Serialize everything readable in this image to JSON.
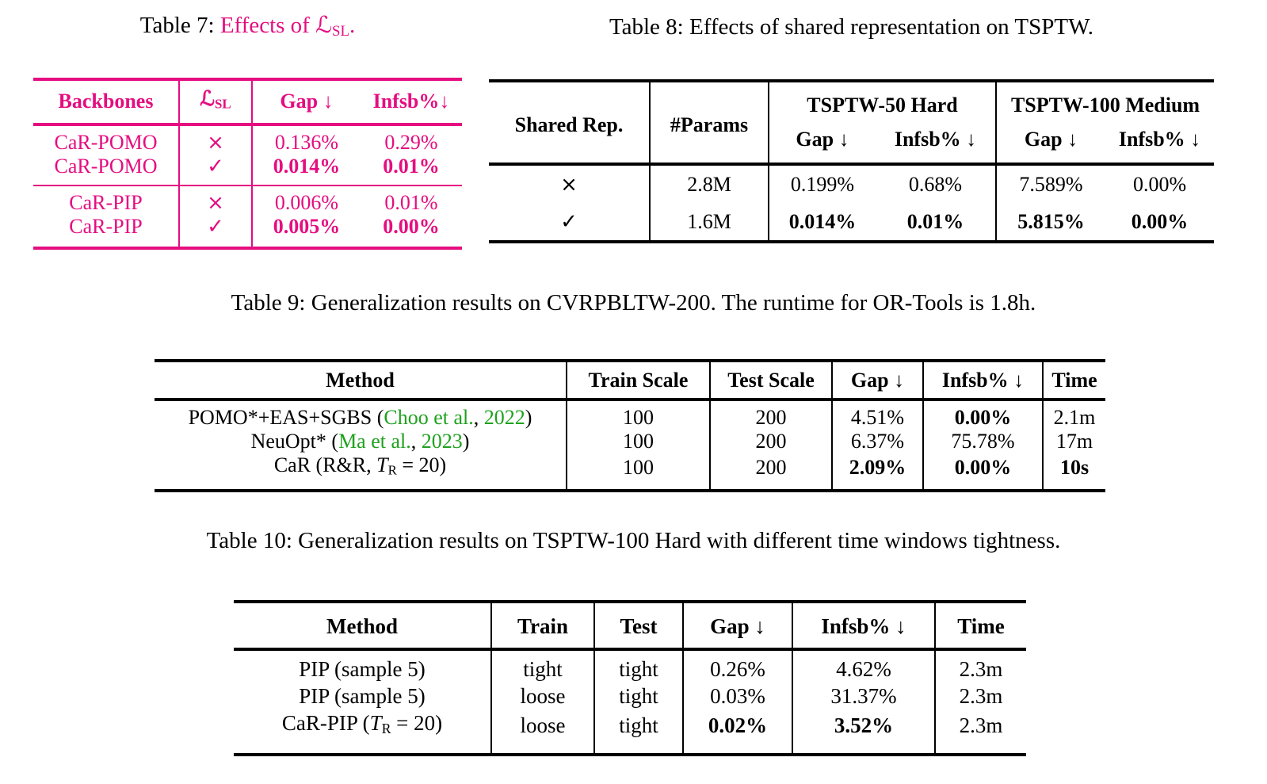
{
  "colors": {
    "magenta": "#e50d80",
    "green": "#1ea11e",
    "black": "#000000"
  },
  "captions": {
    "t7": [
      {
        "t": "Table 7: "
      },
      {
        "t": "Effects of ",
        "c": "magenta"
      },
      {
        "t": "ℒ",
        "c": "magenta",
        "n": "script-L"
      },
      {
        "t": "SL",
        "c": "magenta",
        "sub": true
      },
      {
        "t": ".",
        "c": "magenta"
      }
    ],
    "t8": "Table 8: Effects of shared representation on TSPTW.",
    "t9": "Table 9: Generalization results on CVRPBLTW-200. The runtime for OR-Tools is 1.8h.",
    "t10": "Table 10: Generalization results on TSPTW-100 Hard with different time windows tightness."
  },
  "t7": {
    "header": {
      "backbones": "Backbones",
      "lsl": [
        {
          "t": "ℒ",
          "n": "script-L"
        },
        {
          "t": "SL",
          "sub": true
        }
      ],
      "gap": "Gap ↓",
      "infsb": "Infsb%↓"
    },
    "group1_rows": [
      [
        [
          {
            "t": "CaR-POMO"
          }
        ],
        [
          {
            "t": "×",
            "n": "cross-icon"
          }
        ],
        [
          {
            "t": "0.136%"
          }
        ],
        [
          {
            "t": "0.29%"
          }
        ]
      ],
      [
        [
          {
            "t": "CaR-POMO"
          }
        ],
        [
          {
            "t": "✓",
            "n": "check-icon"
          }
        ],
        [
          {
            "t": "0.014%",
            "b": true
          }
        ],
        [
          {
            "t": "0.01%",
            "b": true
          }
        ]
      ]
    ],
    "group2_rows": [
      [
        [
          {
            "t": "CaR-PIP"
          }
        ],
        [
          {
            "t": "×",
            "n": "cross-icon"
          }
        ],
        [
          {
            "t": "0.006%"
          }
        ],
        [
          {
            "t": "0.01%"
          }
        ]
      ],
      [
        [
          {
            "t": "CaR-PIP"
          }
        ],
        [
          {
            "t": "✓",
            "n": "check-icon"
          }
        ],
        [
          {
            "t": "0.005%",
            "b": true
          }
        ],
        [
          {
            "t": "0.00%",
            "b": true
          }
        ]
      ]
    ]
  },
  "t8": {
    "header": {
      "shared_rep": "Shared Rep.",
      "params": "#Params",
      "group1": "TSPTW-50 Hard",
      "group2": "TSPTW-100 Medium",
      "gap": "Gap ↓",
      "infsb": "Infsb% ↓"
    },
    "rows": [
      [
        [
          {
            "t": "×",
            "n": "cross-icon"
          }
        ],
        [
          {
            "t": "2.8M"
          }
        ],
        [
          {
            "t": "0.199%"
          }
        ],
        [
          {
            "t": "0.68%"
          }
        ],
        [
          {
            "t": "7.589%"
          }
        ],
        [
          {
            "t": "0.00%"
          }
        ]
      ],
      [
        [
          {
            "t": "✓",
            "n": "check-icon"
          }
        ],
        [
          {
            "t": "1.6M"
          }
        ],
        [
          {
            "t": "0.014%",
            "b": true
          }
        ],
        [
          {
            "t": "0.01%",
            "b": true
          }
        ],
        [
          {
            "t": "5.815%",
            "b": true
          }
        ],
        [
          {
            "t": "0.00%",
            "b": true
          }
        ]
      ]
    ]
  },
  "t9": {
    "headers": [
      "Method",
      "Train Scale",
      "Test Scale",
      "Gap ↓",
      "Infsb% ↓",
      "Time"
    ],
    "rows": [
      [
        [
          {
            "t": "POMO*+EAS+SGBS ("
          },
          {
            "t": "Choo et al.",
            "c": "green"
          },
          {
            "t": ", "
          },
          {
            "t": "2022",
            "c": "green"
          },
          {
            "t": ")"
          }
        ],
        [
          {
            "t": "100"
          }
        ],
        [
          {
            "t": "200"
          }
        ],
        [
          {
            "t": "4.51%"
          }
        ],
        [
          {
            "t": "0.00%",
            "b": true
          }
        ],
        [
          {
            "t": "2.1m"
          }
        ]
      ],
      [
        [
          {
            "t": "NeuOpt* ("
          },
          {
            "t": "Ma et al.",
            "c": "green"
          },
          {
            "t": ", "
          },
          {
            "t": "2023",
            "c": "green"
          },
          {
            "t": ")"
          }
        ],
        [
          {
            "t": "100"
          }
        ],
        [
          {
            "t": "200"
          }
        ],
        [
          {
            "t": "6.37%"
          }
        ],
        [
          {
            "t": "75.78%"
          }
        ],
        [
          {
            "t": "17m"
          }
        ]
      ],
      [
        [
          {
            "t": "CaR (R&R, "
          },
          {
            "t": "T",
            "it": true
          },
          {
            "t": "R",
            "sub": true
          },
          {
            "t": " = 20)"
          }
        ],
        [
          {
            "t": "100"
          }
        ],
        [
          {
            "t": "200"
          }
        ],
        [
          {
            "t": "2.09%",
            "b": true
          }
        ],
        [
          {
            "t": "0.00%",
            "b": true
          }
        ],
        [
          {
            "t": "10s",
            "b": true
          }
        ]
      ]
    ]
  },
  "t10": {
    "headers": [
      "Method",
      "Train",
      "Test",
      "Gap ↓",
      "Infsb% ↓",
      "Time"
    ],
    "rows": [
      [
        [
          {
            "t": "PIP (sample 5)"
          }
        ],
        [
          {
            "t": "tight"
          }
        ],
        [
          {
            "t": "tight"
          }
        ],
        [
          {
            "t": "0.26%"
          }
        ],
        [
          {
            "t": "4.62%"
          }
        ],
        [
          {
            "t": "2.3m"
          }
        ]
      ],
      [
        [
          {
            "t": "PIP (sample 5)"
          }
        ],
        [
          {
            "t": "loose"
          }
        ],
        [
          {
            "t": "tight"
          }
        ],
        [
          {
            "t": "0.03%"
          }
        ],
        [
          {
            "t": "31.37%"
          }
        ],
        [
          {
            "t": "2.3m"
          }
        ]
      ],
      [
        [
          {
            "t": "CaR-PIP ("
          },
          {
            "t": "T",
            "it": true
          },
          {
            "t": "R",
            "sub": true
          },
          {
            "t": " = 20)"
          }
        ],
        [
          {
            "t": "loose"
          }
        ],
        [
          {
            "t": "tight"
          }
        ],
        [
          {
            "t": "0.02%",
            "b": true
          }
        ],
        [
          {
            "t": "3.52%",
            "b": true
          }
        ],
        [
          {
            "t": "2.3m"
          }
        ]
      ]
    ]
  }
}
